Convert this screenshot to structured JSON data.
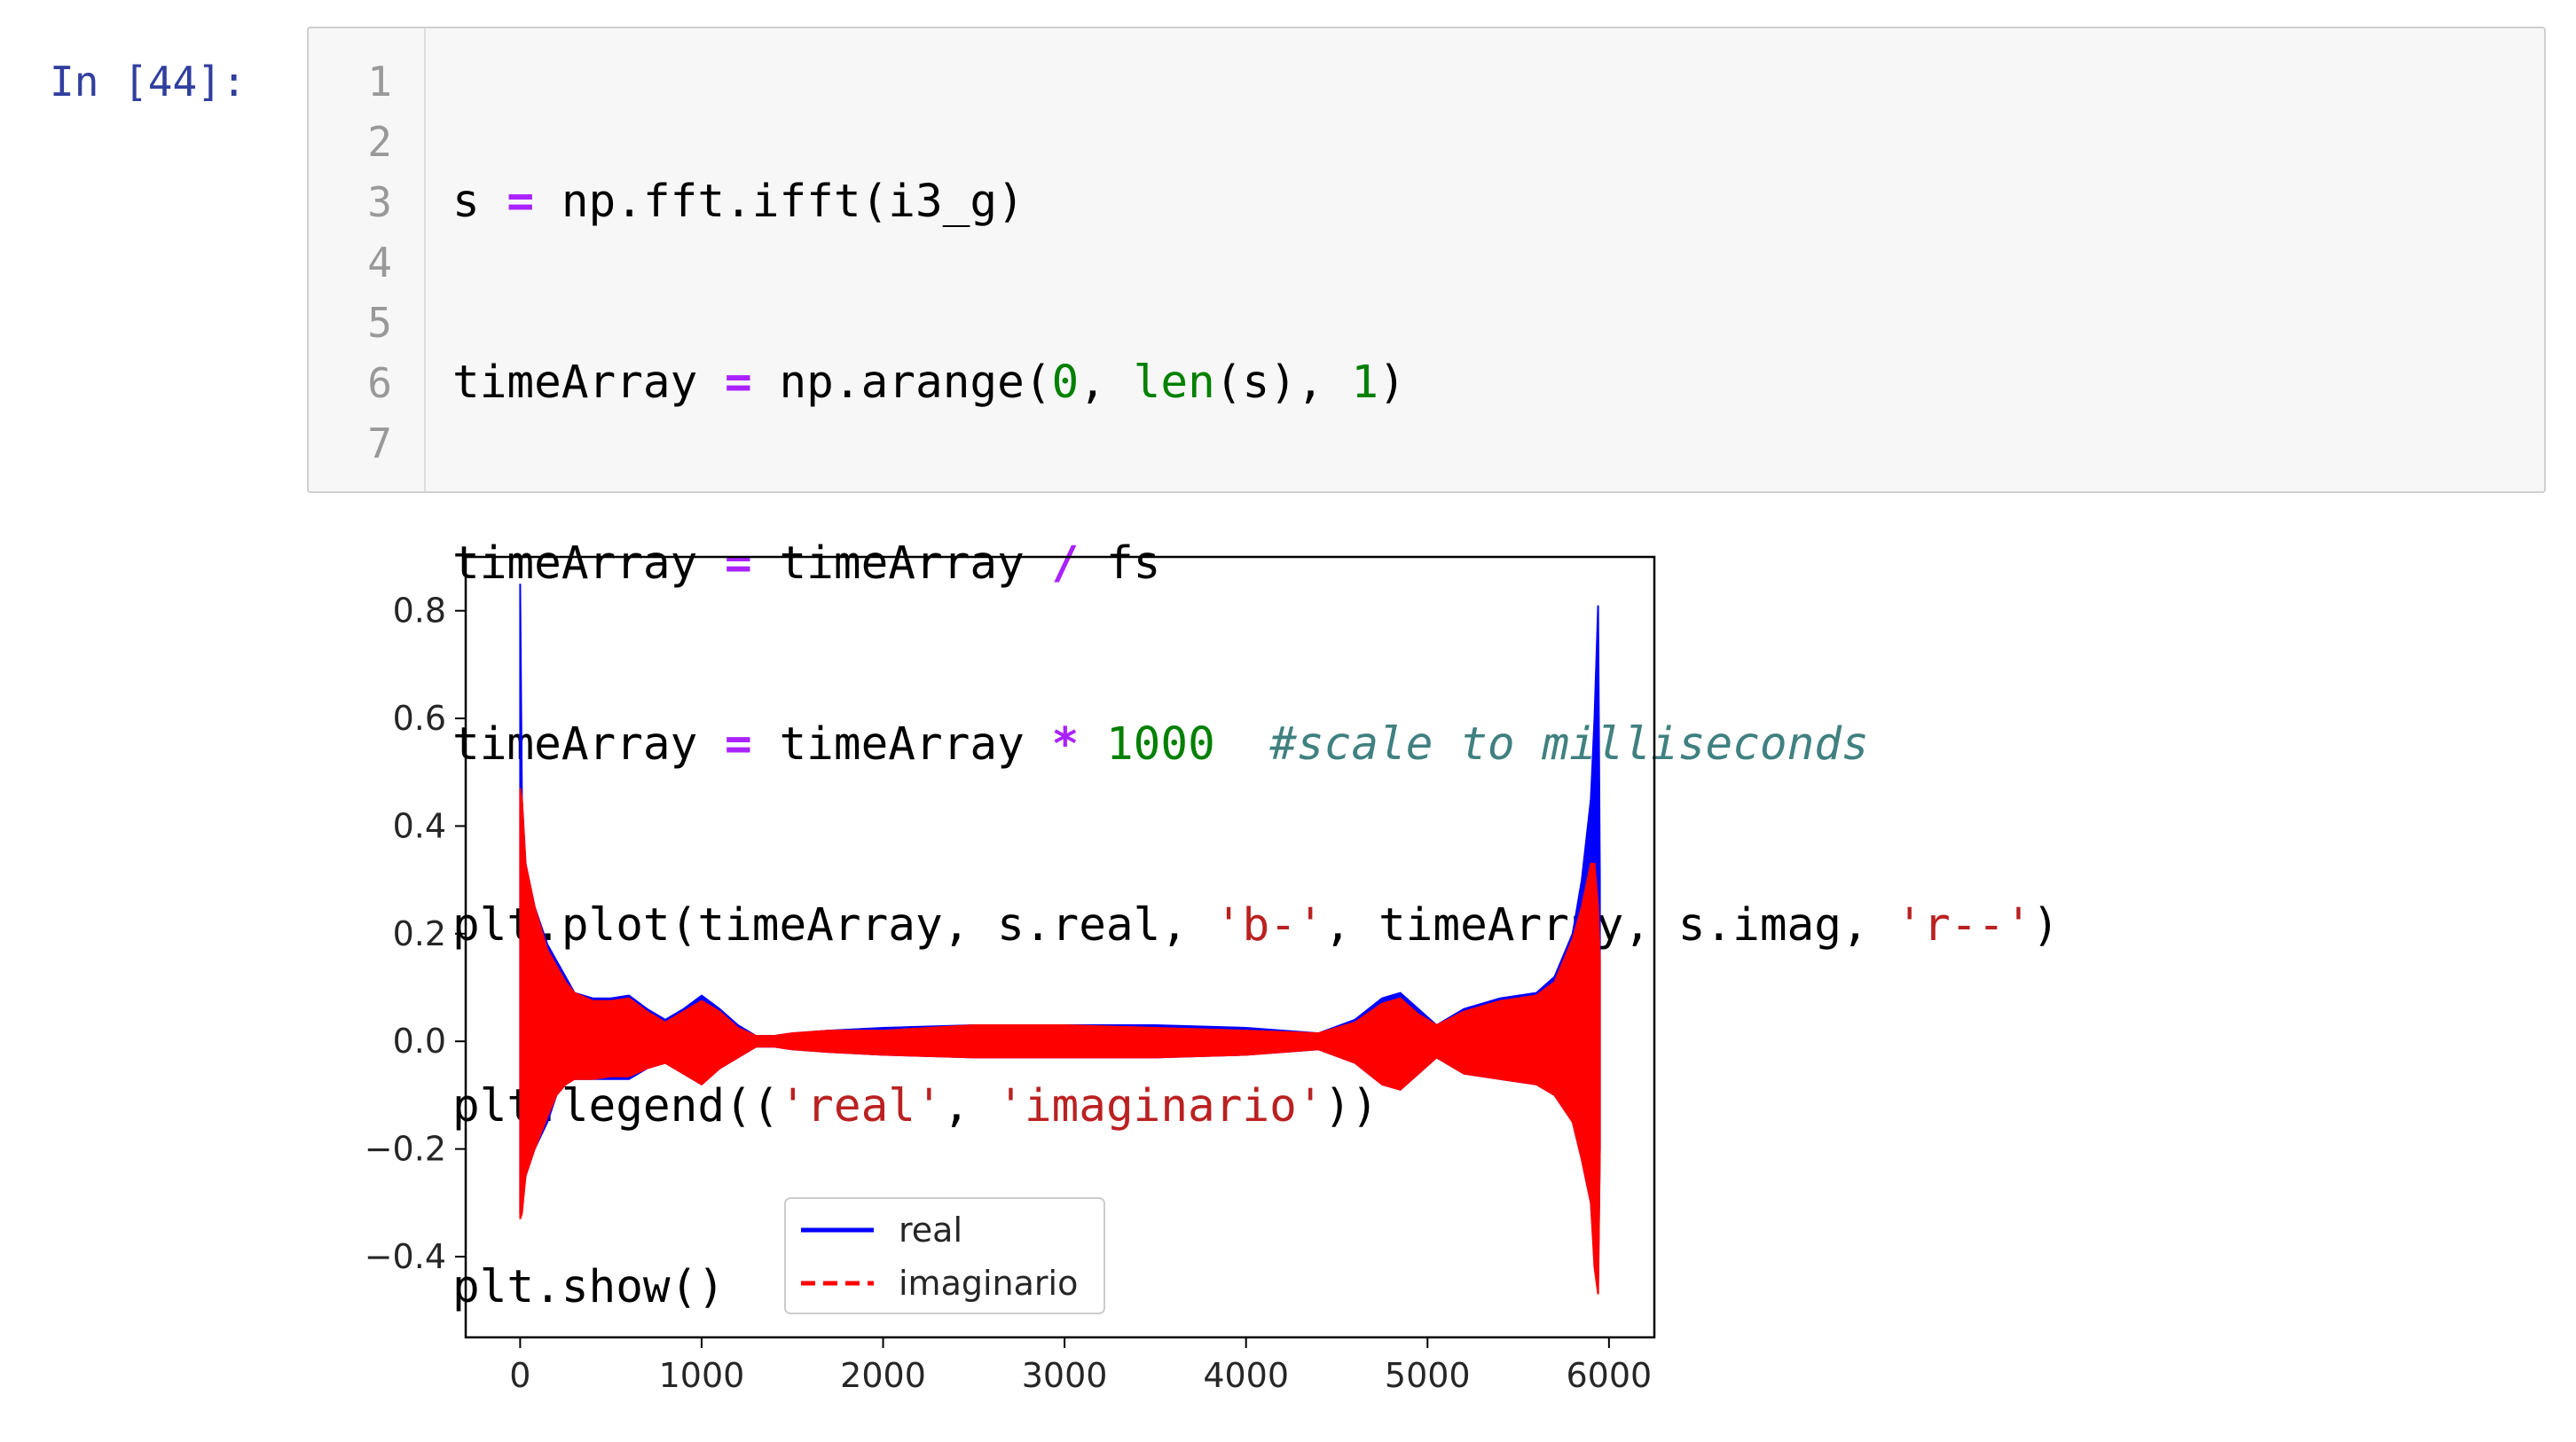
{
  "cell": {
    "prompt": "In [44]:",
    "line_numbers": [
      "1",
      "2",
      "3",
      "4",
      "5",
      "6",
      "7"
    ],
    "lines": [
      {
        "a": "s ",
        "b": "=",
        "c": " np.fft.ifft(i3_g)"
      },
      {
        "a": "timeArray ",
        "b": "=",
        "c": " np.arange(",
        "d": "0",
        "e": ", ",
        "f": "len",
        "g": "(s), ",
        "h": "1",
        "i": ")"
      },
      {
        "a": "timeArray ",
        "b": "=",
        "c": " timeArray ",
        "d": "/",
        "e": " fs"
      },
      {
        "a": "timeArray ",
        "b": "=",
        "c": " timeArray ",
        "d": "*",
        "e": " ",
        "f": "1000",
        "g": "  ",
        "h": "#scale to milliseconds"
      },
      {
        "a": "plt.plot(timeArray, s.real, ",
        "b": "'b-'",
        "c": ", timeArray, s.imag, ",
        "d": "'r--'",
        "e": ")"
      },
      {
        "a": "plt.legend((",
        "b": "'real'",
        "c": ", ",
        "d": "'imaginario'",
        "e": "))"
      },
      {
        "a": "plt.show()"
      }
    ]
  },
  "chart_data": {
    "type": "line",
    "title": "",
    "xlabel": "",
    "ylabel": "",
    "xlim": [
      -300,
      6250
    ],
    "ylim": [
      -0.55,
      0.9
    ],
    "xticks": [
      0,
      1000,
      2000,
      3000,
      4000,
      5000,
      6000
    ],
    "yticks": [
      -0.4,
      -0.2,
      0.0,
      0.2,
      0.4,
      0.6,
      0.8
    ],
    "ytick_labels": [
      "−0.4",
      "−0.2",
      "0.0",
      "0.2",
      "0.4",
      "0.6",
      "0.8"
    ],
    "grid": false,
    "legend_position": "lower center",
    "series": [
      {
        "name": "real",
        "style": "solid",
        "color": "#0000ff",
        "envelope_x": [
          0,
          10,
          30,
          80,
          150,
          200,
          250,
          300,
          400,
          500,
          600,
          700,
          800,
          900,
          1000,
          1100,
          1200,
          1300,
          1400,
          1500,
          1700,
          2000,
          2500,
          3000,
          3500,
          4000,
          4400,
          4600,
          4750,
          4850,
          4950,
          5050,
          5200,
          5400,
          5600,
          5700,
          5800,
          5850,
          5900,
          5920,
          5940,
          5950
        ],
        "envelope_upper": [
          0.85,
          0.45,
          0.33,
          0.25,
          0.18,
          0.15,
          0.12,
          0.09,
          0.08,
          0.08,
          0.085,
          0.06,
          0.04,
          0.06,
          0.085,
          0.06,
          0.03,
          0.01,
          0.01,
          0.015,
          0.02,
          0.025,
          0.03,
          0.03,
          0.03,
          0.025,
          0.015,
          0.04,
          0.08,
          0.09,
          0.06,
          0.03,
          0.06,
          0.08,
          0.09,
          0.12,
          0.2,
          0.3,
          0.45,
          0.6,
          0.81,
          0.3
        ],
        "envelope_lower": [
          -0.32,
          -0.3,
          -0.25,
          -0.2,
          -0.15,
          -0.1,
          -0.08,
          -0.07,
          -0.07,
          -0.07,
          -0.07,
          -0.05,
          -0.04,
          -0.06,
          -0.08,
          -0.05,
          -0.03,
          -0.01,
          -0.01,
          -0.015,
          -0.02,
          -0.025,
          -0.03,
          -0.03,
          -0.03,
          -0.025,
          -0.015,
          -0.04,
          -0.08,
          -0.09,
          -0.06,
          -0.03,
          -0.06,
          -0.07,
          -0.08,
          -0.1,
          -0.15,
          -0.22,
          -0.3,
          -0.4,
          -0.45,
          -0.2
        ]
      },
      {
        "name": "imaginario",
        "style": "dashed",
        "color": "#ff0000",
        "envelope_x": [
          0,
          10,
          30,
          80,
          150,
          200,
          250,
          300,
          400,
          500,
          600,
          700,
          800,
          900,
          1000,
          1100,
          1200,
          1300,
          1400,
          1500,
          1700,
          2000,
          2500,
          3000,
          3500,
          4000,
          4400,
          4600,
          4750,
          4850,
          4950,
          5050,
          5200,
          5400,
          5600,
          5700,
          5800,
          5850,
          5900,
          5920,
          5940,
          5950
        ],
        "envelope_upper": [
          0.47,
          0.45,
          0.33,
          0.25,
          0.17,
          0.14,
          0.11,
          0.09,
          0.075,
          0.075,
          0.08,
          0.055,
          0.035,
          0.055,
          0.075,
          0.055,
          0.025,
          0.01,
          0.01,
          0.015,
          0.02,
          0.02,
          0.03,
          0.03,
          0.025,
          0.02,
          0.015,
          0.035,
          0.07,
          0.08,
          0.05,
          0.03,
          0.055,
          0.075,
          0.085,
          0.11,
          0.19,
          0.25,
          0.33,
          0.33,
          0.25,
          0.15
        ],
        "envelope_lower": [
          -0.33,
          -0.32,
          -0.25,
          -0.2,
          -0.14,
          -0.1,
          -0.08,
          -0.07,
          -0.07,
          -0.065,
          -0.065,
          -0.05,
          -0.04,
          -0.06,
          -0.08,
          -0.05,
          -0.03,
          -0.01,
          -0.01,
          -0.015,
          -0.02,
          -0.025,
          -0.03,
          -0.03,
          -0.03,
          -0.025,
          -0.015,
          -0.04,
          -0.08,
          -0.09,
          -0.06,
          -0.03,
          -0.06,
          -0.07,
          -0.08,
          -0.1,
          -0.15,
          -0.22,
          -0.3,
          -0.42,
          -0.47,
          -0.2
        ]
      }
    ]
  }
}
